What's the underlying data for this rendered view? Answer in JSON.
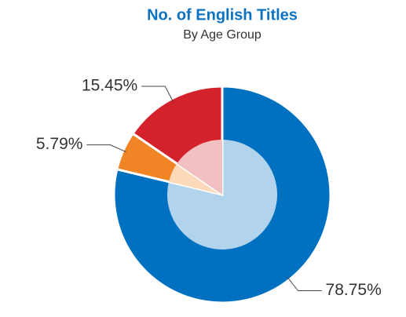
{
  "chart_data": {
    "type": "pie",
    "title": "No. of English Titles",
    "subtitle": "By Age Group",
    "values": [
      78.75,
      5.79,
      15.45
    ],
    "value_labels": [
      "78.75%",
      "5.79%",
      "15.45%"
    ],
    "colors": [
      "#0070c0",
      "#f18526",
      "#d3222b"
    ],
    "inner_colors": [
      "#b1d3ec",
      "#fbd9b9",
      "#f2bfc3"
    ]
  }
}
